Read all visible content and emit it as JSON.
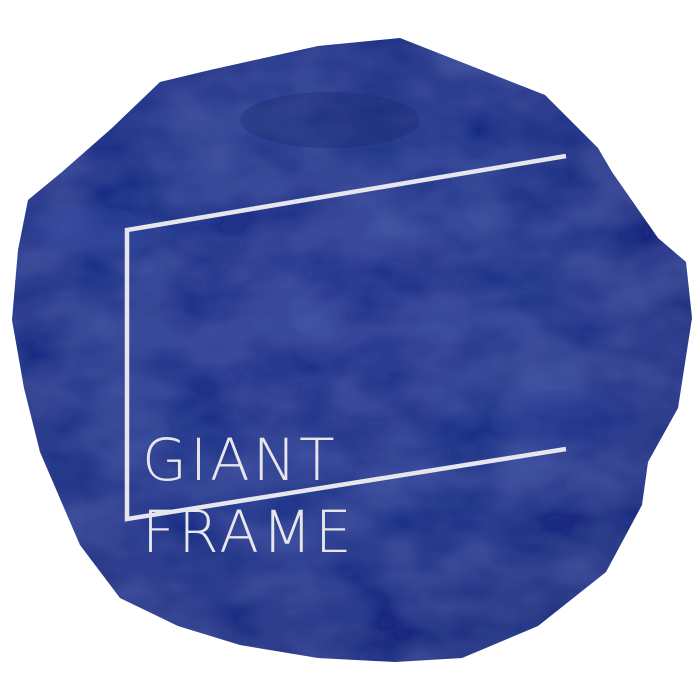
{
  "logo": {
    "line1": "GIANT",
    "line2": "FRAME",
    "colors": {
      "blob": "#1e2f85",
      "blob_dark": "#15236b",
      "blob_light": "#2e44a0",
      "frame_line": "#e6e6ec",
      "text": "#e6e6ec",
      "background": "#ffffff"
    },
    "icon": "open-frame-outline-icon"
  }
}
